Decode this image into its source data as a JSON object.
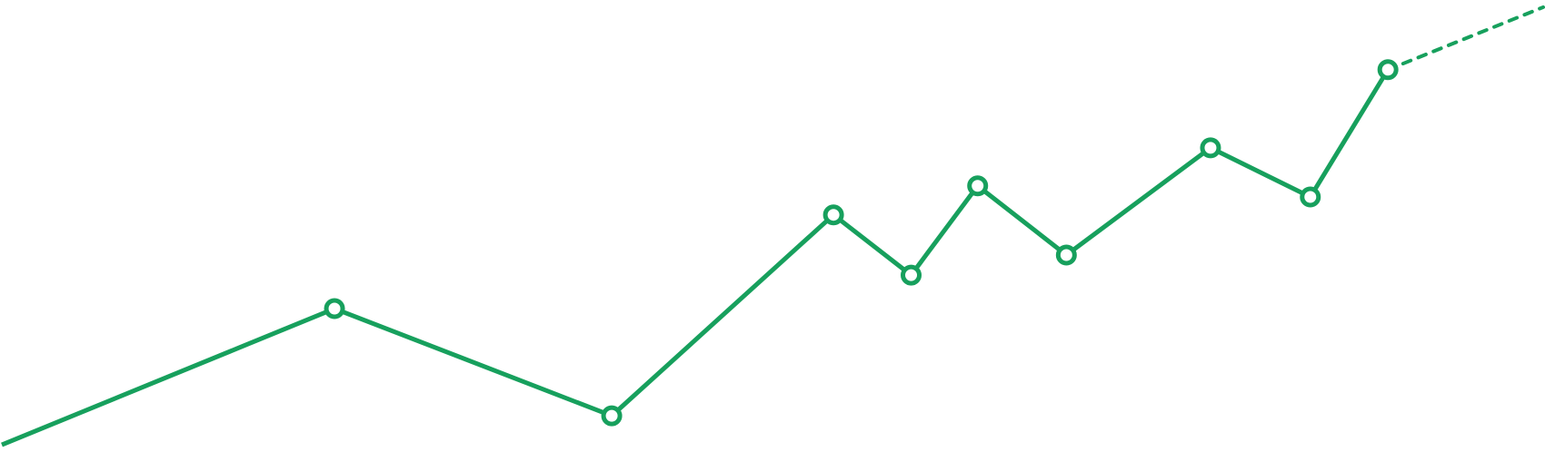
{
  "chart_data": {
    "type": "line",
    "title": "",
    "xlabel": "",
    "ylabel": "",
    "grid": false,
    "legend": "none",
    "ylim": [
      0,
      100
    ],
    "x": [
      0,
      1,
      2,
      3,
      4,
      5,
      6,
      7,
      8,
      9,
      10,
      11,
      12
    ],
    "series": [
      {
        "color": "#17a05d",
        "values": [
          1,
          31.5,
          7.5,
          52.5,
          39,
          59,
          43.5,
          67.5,
          56.5,
          85,
          99
        ],
        "x": [
          0,
          3,
          5.5,
          7.5,
          8.2,
          8.8,
          9.6,
          10.9,
          11.8,
          12.5,
          13.9
        ],
        "marker_index_start": 1,
        "marker_index_end": 9,
        "dashed_from_index": 9
      }
    ]
  }
}
